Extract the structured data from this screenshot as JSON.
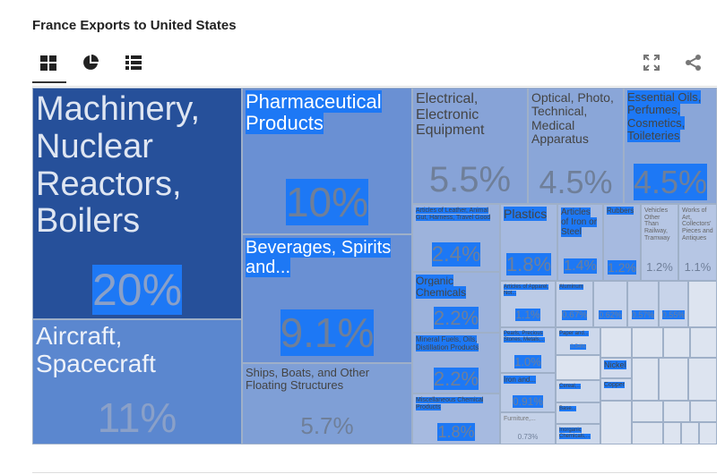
{
  "title": "France Exports to United States",
  "tools": {
    "treemap": "treemap-icon",
    "pie": "pie-chart-icon",
    "list": "list-icon",
    "expand": "expand-icon",
    "share": "share-icon"
  },
  "colors": {
    "selection": "#1d78f5",
    "dark": "#26509a"
  },
  "tiles": [
    {
      "label": "Machinery, Nuclear Reactors, Boilers",
      "pct": "20%"
    },
    {
      "label": "Aircraft, Spacecraft",
      "pct": "11%"
    },
    {
      "label": "Pharmaceutical Products",
      "pct": "10%"
    },
    {
      "label": "Beverages, Spirits and...",
      "pct": "9.1%"
    },
    {
      "label": "Ships, Boats, and Other Floating Structures",
      "pct": "5.7%"
    },
    {
      "label": "Electrical, Electronic Equipment",
      "pct": "5.5%"
    },
    {
      "label": "Optical, Photo, Technical, Medical Apparatus",
      "pct": "4.5%"
    },
    {
      "label": "Essential Oils, Perfumes, Cosmetics, Toileteries",
      "pct": "4.5%"
    },
    {
      "label": "Articles of Leather, Animal Gut, Harness, Travel Good",
      "pct": "2.4%"
    },
    {
      "label": "Organic Chemicals",
      "pct": "2.2%"
    },
    {
      "label": "Mineral Fuels, Oils, Distillation Products",
      "pct": "2.2%"
    },
    {
      "label": "Miscellaneous Chemical Products",
      "pct": "1.8%"
    },
    {
      "label": "Plastics",
      "pct": "1.8%"
    },
    {
      "label": "Articles of Iron or Steel",
      "pct": "1.4%"
    },
    {
      "label": "Rubbers",
      "pct": "1.2%"
    },
    {
      "label": "Vehicles Other Than Railway, Tramway",
      "pct": "1.2%"
    },
    {
      "label": "Works of Art, Collectors' Pieces and Antiques",
      "pct": "1.1%"
    },
    {
      "label": "Articles of Apparel, Not...",
      "pct": "1.1%"
    },
    {
      "label": "Pearls, Precious Stones, Metals,...",
      "pct": "1.0%"
    },
    {
      "label": "Iron and...",
      "pct": "0.91%"
    },
    {
      "label": "Furniture,...",
      "pct": "0.73%"
    },
    {
      "label": "Aluminum",
      "pct": "0.67%"
    },
    {
      "label": "",
      "pct": "0.62%"
    },
    {
      "label": "",
      "pct": "0.57%"
    },
    {
      "label": "",
      "pct": "0.55%"
    },
    {
      "label": "Paper and...",
      "pct": "0.54%"
    },
    {
      "label": "Cereal,...",
      "pct": ""
    },
    {
      "label": "Base...",
      "pct": ""
    },
    {
      "label": "Inorganic Chemicals,...",
      "pct": ""
    },
    {
      "label": "Nickel",
      "pct": ""
    },
    {
      "label": "Copper",
      "pct": ""
    }
  ]
}
